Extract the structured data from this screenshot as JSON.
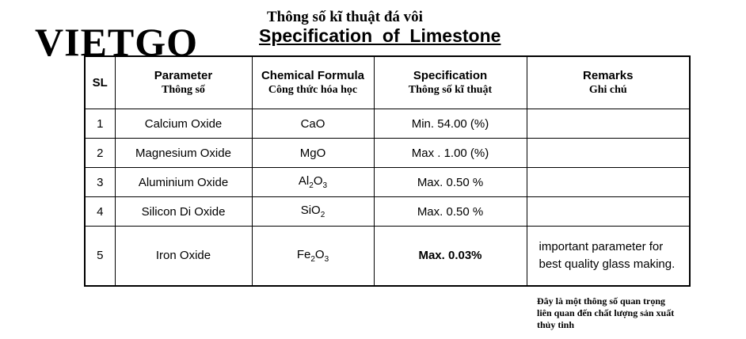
{
  "logo": "VIETGO",
  "title_vi": "Thông số kĩ thuật đá vôi",
  "title_en": "Specification  of  Limestone",
  "headers": {
    "sl": "SL",
    "parameter_en": "Parameter",
    "parameter_vi": "Thông số",
    "formula_en": "Chemical Formula",
    "formula_vi": "Công thức hóa học",
    "spec_en": "Specification",
    "spec_vi": "Thông số kĩ thuật",
    "remarks_en": "Remarks",
    "remarks_vi": "Ghi chú"
  },
  "rows": [
    {
      "sl": "1",
      "parameter": "Calcium Oxide",
      "f_a": "CaO",
      "f_sub1": "",
      "f_b": "",
      "f_sub2": "",
      "spec": "Min. 54.00 (%)",
      "remark_1": "",
      "remark_2": ""
    },
    {
      "sl": "2",
      "parameter": "Magnesium Oxide",
      "f_a": "MgO",
      "f_sub1": "",
      "f_b": "",
      "f_sub2": "",
      "spec": "Max . 1.00 (%)",
      "remark_1": "",
      "remark_2": ""
    },
    {
      "sl": "3",
      "parameter": "Aluminium Oxide",
      "f_a": "Al",
      "f_sub1": "2",
      "f_b": "O",
      "f_sub2": "3",
      "spec": "Max. 0.50 %",
      "remark_1": "",
      "remark_2": ""
    },
    {
      "sl": "4",
      "parameter": "Silicon Di Oxide",
      "f_a": "SiO",
      "f_sub1": "2",
      "f_b": "",
      "f_sub2": "",
      "spec": "Max. 0.50  %",
      "remark_1": "",
      "remark_2": ""
    },
    {
      "sl": "5",
      "parameter": "Iron Oxide",
      "f_a": "Fe",
      "f_sub1": "2",
      "f_b": "O",
      "f_sub2": "3",
      "spec": "Max. 0.03%",
      "remark_1": "important parameter for",
      "remark_2": "best quality glass making."
    }
  ],
  "note_lines": [
    "Đây là một thông số quan trọng",
    "liên quan đến chất lượng sản xuất",
    "thủy tinh"
  ]
}
